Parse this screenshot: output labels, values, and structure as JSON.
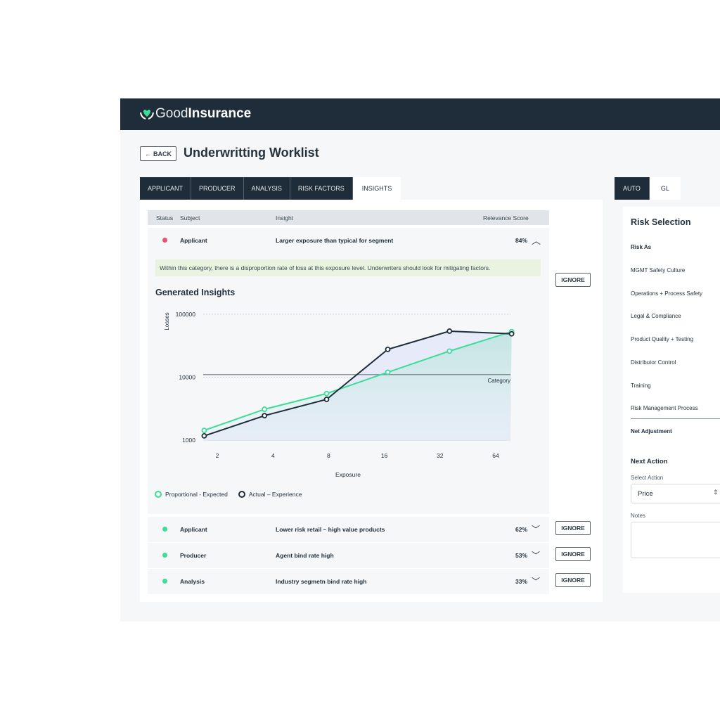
{
  "brand": {
    "name_light": "Good",
    "name_bold": "Insurance",
    "logo_icon": "heart-hands-icon",
    "accent": "#3ddc97"
  },
  "page": {
    "back_label": "BACK",
    "title": "Underwritting Worklist"
  },
  "tabs": [
    {
      "label": "APPLICANT"
    },
    {
      "label": "PRODUCER"
    },
    {
      "label": "ANALYSIS"
    },
    {
      "label": "RISK FACTORS"
    },
    {
      "label": "INSIGHTS",
      "active": true
    }
  ],
  "table": {
    "headers": {
      "status": "Status",
      "subject": "Subject",
      "insight": "Insight",
      "score": "Relevance Score"
    },
    "rows": [
      {
        "status_color": "#e94e77",
        "subject": "Applicant",
        "insight": "Larger exposure than typical for segment",
        "score": "84%",
        "expanded": true,
        "ignore": "IGNORE",
        "note": "Within this category, there is a disproportion rate of loss at this exposure level. Underwriters should look for mitigating factors."
      },
      {
        "status_color": "#3ddc97",
        "subject": "Applicant",
        "insight": "Lower risk retail – high value products",
        "score": "62%",
        "ignore": "IGNORE"
      },
      {
        "status_color": "#3ddc97",
        "subject": "Producer",
        "insight": "Agent bind rate high",
        "score": "53%",
        "ignore": "IGNORE"
      },
      {
        "status_color": "#3ddc97",
        "subject": "Analysis",
        "insight": "Industry segmetn bind rate high",
        "score": "33%",
        "ignore": "IGNORE"
      }
    ]
  },
  "insights_title": "Generated Insights",
  "chart_data": {
    "type": "line",
    "xlabel": "Exposure",
    "ylabel": "Losses",
    "x_scale": "log2",
    "y_scale": "log10",
    "x_ticks": [
      "2",
      "4",
      "8",
      "16",
      "32",
      "64"
    ],
    "y_ticks": [
      "1000",
      "10000",
      "100000"
    ],
    "ylim": [
      1000,
      100000
    ],
    "x": [
      1.7,
      3.6,
      7.8,
      16.7,
      36,
      78
    ],
    "series": [
      {
        "name": "Proportional - Expected",
        "color": "#3ddc97",
        "values": [
          1430,
          3100,
          5500,
          12000,
          26000,
          53000
        ]
      },
      {
        "name": "Actual – Experience",
        "color": "#1f2d3a",
        "values": [
          1170,
          2450,
          4450,
          27700,
          54000,
          49000
        ]
      }
    ],
    "reference_line": {
      "label": "Category",
      "value": 11000
    },
    "legend_position": "bottom-left"
  },
  "right": {
    "tabs": [
      {
        "label": "AUTO",
        "active": true
      },
      {
        "label": "GL"
      }
    ],
    "title": "Risk Selection",
    "items": [
      "Risk As",
      "MGMT Safety Culture",
      "Operations + Process Safety",
      "Legal & Compliance",
      "Product Quality + Testing",
      "Distributor Control",
      "Training",
      "Risk Management Process"
    ],
    "net": "Net Adjustment",
    "next_action": "Next Action",
    "select_label": "Select Action",
    "select_value": "Price",
    "notes_label": "Notes",
    "notes_value": ""
  }
}
